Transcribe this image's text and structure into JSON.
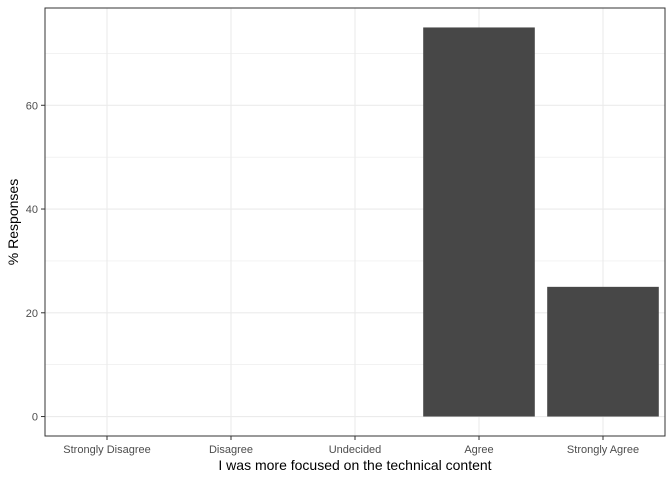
{
  "chart_data": {
    "type": "bar",
    "categories": [
      "Strongly Disagree",
      "Disagree",
      "Undecided",
      "Agree",
      "Strongly Agree"
    ],
    "values": [
      0,
      0,
      0,
      75,
      25
    ],
    "title": "",
    "xlabel": "I was more focused on the technical content",
    "ylabel": "% Responses",
    "ylim": [
      -3.75,
      78.75
    ],
    "yticks": [
      0,
      20,
      40,
      60
    ],
    "ytick_labels": [
      "0",
      "20",
      "40",
      "60"
    ],
    "grid": true,
    "legend": "none",
    "colors": {
      "bar": "#474747",
      "grid": "#ebebeb",
      "panel_border": "#333333",
      "background": "#ffffff"
    }
  }
}
